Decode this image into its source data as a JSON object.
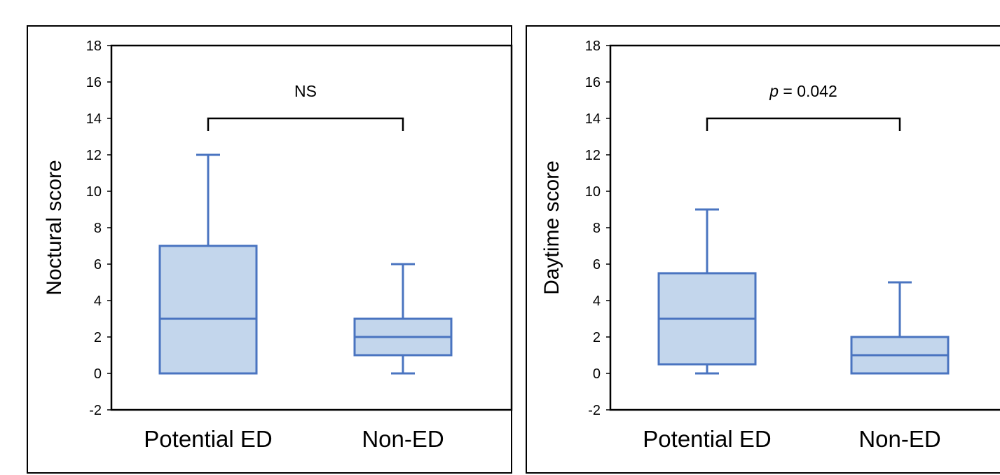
{
  "colors": {
    "box_fill": "#c3d6ec",
    "box_stroke": "#4a74c0",
    "frame": "#000000",
    "bracket": "#000000"
  },
  "chart_data": [
    {
      "type": "box",
      "xlabel": "",
      "ylabel": "Noctural score",
      "ylim": [
        -2,
        18
      ],
      "yticks": [
        "-2",
        "0",
        "2",
        "4",
        "6",
        "8",
        "10",
        "12",
        "14",
        "16",
        "18"
      ],
      "categories": [
        "Potential ED",
        "Non-ED"
      ],
      "boxes": [
        {
          "category": "Potential ED",
          "min": 0,
          "q1": 0,
          "median": 3,
          "q3": 7,
          "max": 12
        },
        {
          "category": "Non-ED",
          "min": 0,
          "q1": 1,
          "median": 2,
          "q3": 3,
          "max": 6
        }
      ],
      "annotation": {
        "text": "NS",
        "level": 14
      },
      "grid": false,
      "legend": "none"
    },
    {
      "type": "box",
      "xlabel": "",
      "ylabel": "Daytime score",
      "ylim": [
        -2,
        18
      ],
      "yticks": [
        "-2",
        "0",
        "2",
        "4",
        "6",
        "8",
        "10",
        "12",
        "14",
        "16",
        "18"
      ],
      "categories": [
        "Potential ED",
        "Non-ED"
      ],
      "boxes": [
        {
          "category": "Potential ED",
          "min": 0,
          "q1": 0.5,
          "median": 3,
          "q3": 5.5,
          "max": 9
        },
        {
          "category": "Non-ED",
          "min": 0,
          "q1": 0,
          "median": 1,
          "q3": 2,
          "max": 5
        }
      ],
      "annotation": {
        "text_italic": "p",
        "text": " = 0.042",
        "level": 14
      },
      "grid": false,
      "legend": "none"
    }
  ]
}
